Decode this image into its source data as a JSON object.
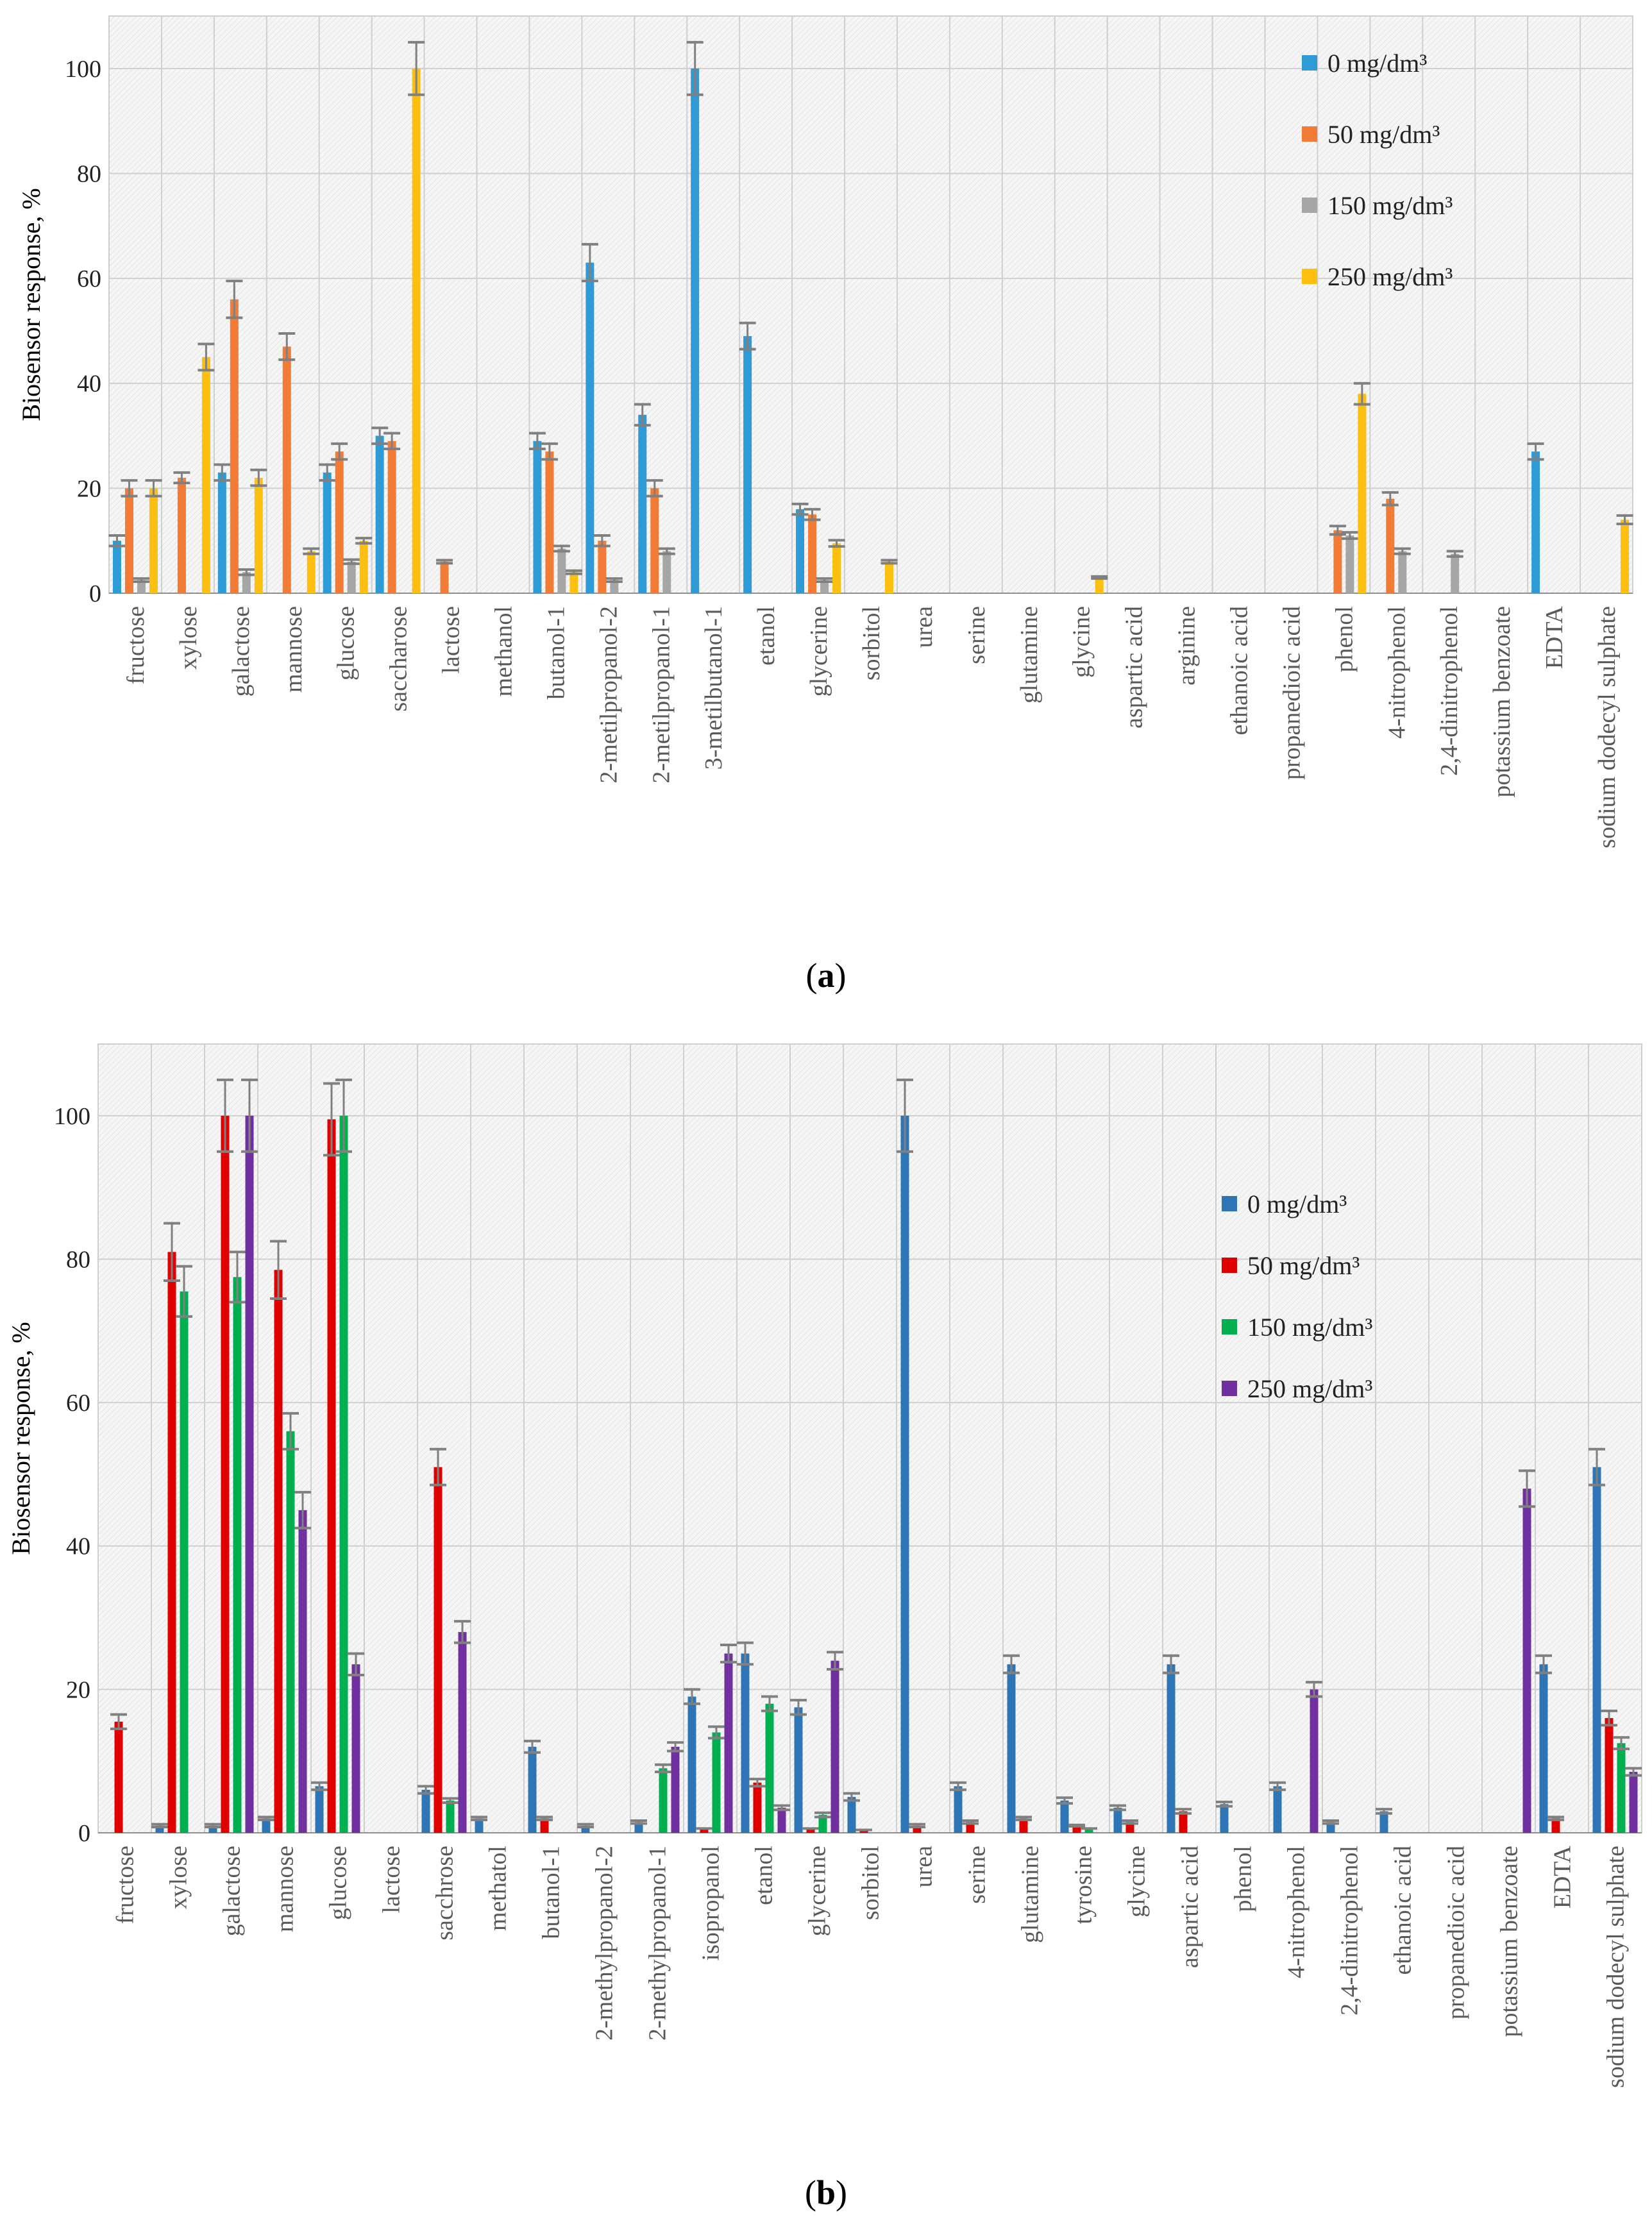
{
  "figure": {
    "panel_a_label_open": "(",
    "panel_a_letter": "a",
    "panel_a_label_close": ")",
    "panel_b_letter": "b"
  },
  "colors": {
    "a": [
      "#2e9bd6",
      "#f27b35",
      "#a6a6a6",
      "#fdc010"
    ],
    "b": [
      "#2e75b6",
      "#e00000",
      "#00b050",
      "#7030a0"
    ],
    "error_bar": "#808080",
    "grid": "#cfcfcf"
  },
  "chart_data": [
    {
      "id": "a",
      "type": "bar",
      "title": "",
      "xlabel": "",
      "ylabel": "Biosensor response, %",
      "ylim": [
        0,
        110
      ],
      "yticks": [
        0,
        20,
        40,
        60,
        80,
        100
      ],
      "legend_position": "top-right",
      "grid": true,
      "categories": [
        "fructose",
        "xylose",
        "galactose",
        "mannose",
        "glucose",
        "saccharose",
        "lactose",
        "methanol",
        "butanol-1",
        "2-metilpropanol-2",
        "2-metilpropanol-1",
        "3-metilbutanol-1",
        "etanol",
        "glycerine",
        "sorbitol",
        "urea",
        "serine",
        "glutamine",
        "glycine",
        "aspartic acid",
        "arginine",
        "ethanoic acid",
        "propanedioic acid",
        "phenol",
        "4-nitrophenol",
        "2,4-dinitrophenol",
        "potassium benzoate",
        "EDTA",
        "sodium dodecyl sulphate"
      ],
      "series": [
        {
          "name": "0 mg/dm³",
          "values": [
            10,
            0,
            23,
            0,
            23,
            30,
            0,
            0,
            29,
            63,
            34,
            100,
            49,
            16,
            0,
            0,
            0,
            0,
            0,
            0,
            0,
            0,
            0,
            0,
            0,
            0,
            0,
            27,
            0
          ],
          "errors": [
            1,
            0,
            1.5,
            0,
            1.5,
            1.5,
            0,
            0,
            1.5,
            3.5,
            2,
            5,
            2.5,
            1,
            0,
            0,
            0,
            0,
            0,
            0,
            0,
            0,
            0,
            0,
            0,
            0,
            0,
            1.5,
            0
          ]
        },
        {
          "name": "50 mg/dm³",
          "values": [
            20,
            22,
            56,
            47,
            27,
            29,
            6,
            0,
            27,
            10,
            20,
            0,
            0,
            15,
            0,
            0,
            0,
            0,
            0,
            0,
            0,
            0,
            0,
            12,
            18,
            0,
            0,
            0,
            0
          ],
          "errors": [
            1.5,
            1,
            3.5,
            2.5,
            1.5,
            1.5,
            0.3,
            0,
            1.5,
            1,
            1.5,
            0,
            0,
            1,
            0,
            0,
            0,
            0,
            0,
            0,
            0,
            0,
            0,
            0.8,
            1.2,
            0,
            0,
            0,
            0
          ]
        },
        {
          "name": "150 mg/dm³",
          "values": [
            2.5,
            0,
            4,
            0,
            6,
            0,
            0,
            0,
            8.5,
            2.5,
            8,
            0,
            0,
            2.5,
            0,
            0,
            0,
            0,
            0,
            0,
            0,
            0,
            0,
            11,
            8,
            7.5,
            0,
            0,
            0
          ],
          "errors": [
            0.3,
            0,
            0.5,
            0,
            0.4,
            0,
            0,
            0,
            0.5,
            0.3,
            0.5,
            0,
            0,
            0.3,
            0,
            0,
            0,
            0,
            0,
            0,
            0,
            0,
            0,
            0.6,
            0.5,
            0.5,
            0,
            0,
            0
          ]
        },
        {
          "name": "250 mg/dm³",
          "values": [
            20,
            45,
            22,
            8,
            10,
            100,
            0,
            0,
            4,
            0,
            0,
            0,
            0,
            9.5,
            6,
            0,
            0,
            0,
            3,
            0,
            0,
            0,
            0,
            38,
            0,
            0,
            0,
            0,
            14
          ],
          "errors": [
            1.5,
            2.5,
            1.5,
            0.5,
            0.5,
            5,
            0,
            0,
            0.3,
            0,
            0,
            0,
            0,
            0.6,
            0.3,
            0,
            0,
            0,
            0.2,
            0,
            0,
            0,
            0,
            2,
            0,
            0,
            0,
            0,
            0.8
          ]
        }
      ]
    },
    {
      "id": "b",
      "type": "bar",
      "title": "",
      "xlabel": "",
      "ylabel": "Biosensor response, %",
      "ylim": [
        0,
        110
      ],
      "yticks": [
        0,
        20,
        40,
        60,
        80,
        100
      ],
      "legend_position": "center-right",
      "grid": true,
      "categories": [
        "fructose",
        "xylose",
        "galactose",
        "mannose",
        "glucose",
        "lactose",
        "sacchrose",
        "methatol",
        "butanol-1",
        "2-methylpropanol-2",
        "2-methylpropanol-1",
        "isopropanol",
        "etanol",
        "glycerine",
        "sorbitol",
        "urea",
        "serine",
        "glutamine",
        "tyrosine",
        "glycine",
        "aspartic acid",
        "phenol",
        "4-nitrophenol",
        "2,4-dinitrophenol",
        "ethanoic acid",
        "propanedioic acid",
        "potassium benzoate",
        "EDTA",
        "sodium dodecyl sulphate"
      ],
      "series": [
        {
          "name": "0 mg/dm³",
          "values": [
            0,
            1,
            1,
            2,
            6.5,
            0,
            6,
            2,
            12,
            1,
            1.5,
            19,
            25,
            17.5,
            5,
            100,
            6.5,
            23.5,
            4.5,
            3.5,
            23.5,
            4,
            6.5,
            1.5,
            3,
            0,
            0,
            23.5,
            51
          ],
          "errors": [
            0,
            0.2,
            0.2,
            0.2,
            0.5,
            0,
            0.5,
            0.2,
            0.8,
            0.2,
            0.2,
            1,
            1.5,
            1,
            0.5,
            5,
            0.5,
            1.2,
            0.4,
            0.3,
            1.2,
            0.3,
            0.5,
            0.2,
            0.3,
            0,
            0,
            1.2,
            2.5
          ]
        },
        {
          "name": "50 mg/dm³",
          "values": [
            15.5,
            81,
            100,
            78.5,
            99.5,
            0,
            51,
            0,
            2,
            0,
            0,
            0.5,
            7,
            0.5,
            0.3,
            1,
            1.5,
            2,
            1,
            1.5,
            3,
            0,
            0,
            0,
            0,
            0,
            0,
            2,
            16
          ],
          "errors": [
            1,
            4,
            5,
            4,
            5,
            0,
            2.5,
            0,
            0.2,
            0,
            0,
            0.1,
            0.5,
            0.1,
            0.1,
            0.2,
            0.2,
            0.2,
            0.1,
            0.2,
            0.3,
            0,
            0,
            0,
            0,
            0,
            0,
            0.2,
            1
          ]
        },
        {
          "name": "150 mg/dm³",
          "values": [
            0,
            75.5,
            77.5,
            56,
            100,
            0,
            4.5,
            0,
            0,
            0,
            9,
            14,
            18,
            2.5,
            0,
            0,
            0,
            0,
            0.5,
            0,
            0,
            0,
            0,
            0,
            0,
            0,
            0,
            0,
            12.5
          ],
          "errors": [
            0,
            3.5,
            3.5,
            2.5,
            5,
            0,
            0.3,
            0,
            0,
            0,
            0.5,
            0.8,
            1,
            0.3,
            0,
            0,
            0,
            0,
            0.1,
            0,
            0,
            0,
            0,
            0,
            0,
            0,
            0,
            0,
            0.8
          ]
        },
        {
          "name": "250 mg/dm³",
          "values": [
            0,
            0,
            100,
            45,
            23.5,
            0,
            28,
            0,
            0,
            0,
            12,
            25,
            3.5,
            24,
            0,
            0,
            0,
            0,
            0,
            0,
            0,
            0,
            20,
            0,
            0,
            0,
            48,
            0,
            8.5
          ],
          "errors": [
            0,
            0,
            5,
            2.5,
            1.5,
            0,
            1.5,
            0,
            0,
            0,
            0.6,
            1.2,
            0.3,
            1.2,
            0,
            0,
            0,
            0,
            0,
            0,
            0,
            0,
            1,
            0,
            0,
            0,
            2.5,
            0,
            0.5
          ]
        }
      ]
    }
  ]
}
